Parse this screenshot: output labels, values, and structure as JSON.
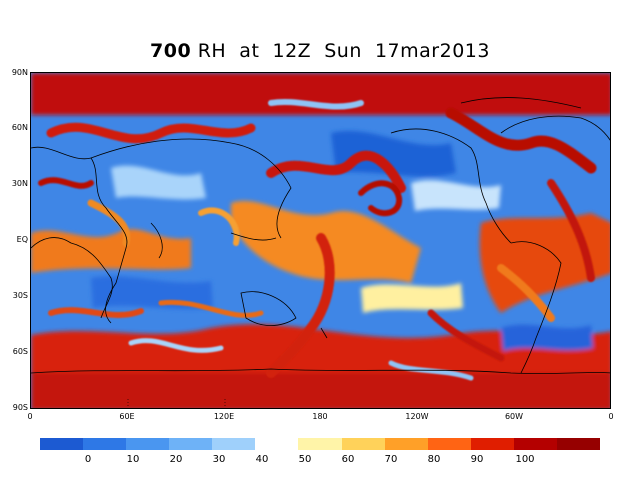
{
  "title": {
    "level": "700",
    "text": "RH  at  12Z  Sun  17mar2013"
  },
  "map": {
    "lat_labels": [
      "90N",
      "60N",
      "30N",
      "EQ",
      "30S",
      "60S",
      "90S"
    ],
    "lon_labels": [
      "0",
      "60E",
      "120E",
      "180",
      "120W",
      "60W",
      "0"
    ],
    "projection": "cylindrical equidistant, 0 to 360 longitude",
    "field": "relative humidity (%)"
  },
  "colorbar": {
    "ticks": [
      "0",
      "10",
      "20",
      "30",
      "40",
      "50",
      "60",
      "70",
      "80",
      "90",
      "100"
    ],
    "colors": [
      "#1c5ad2",
      "#2e78e6",
      "#4a96f0",
      "#6eb2f7",
      "#9fd0fb",
      "#ffffff",
      "#fff4a8",
      "#ffd25a",
      "#ffa028",
      "#ff6414",
      "#e01e00",
      "#b40000",
      "#960000"
    ]
  }
}
